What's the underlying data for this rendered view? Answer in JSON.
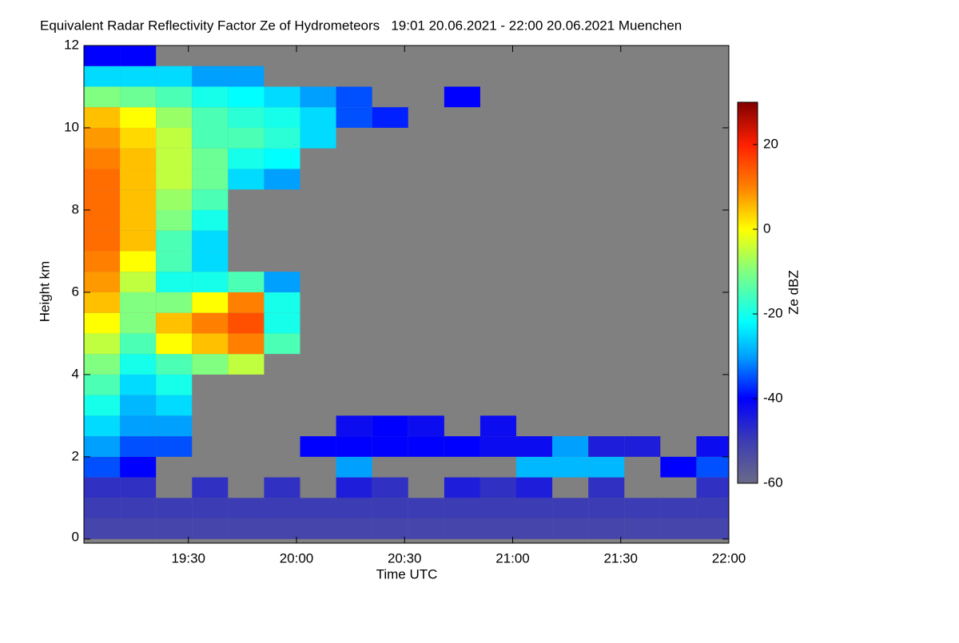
{
  "chart_data": {
    "type": "heatmap",
    "title": "Equivalent Radar Reflectivity Factor Ze of Hydrometeors   19:01 20.06.2021 - 22:00 20.06.2021 Muenchen",
    "x_label": "Time UTC",
    "y_label": "Height km",
    "colorbar_label": "Ze dBZ",
    "background": "#808080",
    "xlim": [
      1141,
      1320
    ],
    "xticks": [
      {
        "value": 1170,
        "label": "19:30"
      },
      {
        "value": 1200,
        "label": "20:00"
      },
      {
        "value": 1230,
        "label": "20:30"
      },
      {
        "value": 1260,
        "label": "21:00"
      },
      {
        "value": 1290,
        "label": "21:30"
      },
      {
        "value": 1320,
        "label": "22:00"
      }
    ],
    "ylim": [
      -0.1,
      12
    ],
    "yticks": [
      0,
      2,
      4,
      6,
      8,
      10,
      12
    ],
    "zlim": [
      -60,
      30
    ],
    "zticks": [
      -60,
      -40,
      -20,
      0,
      20
    ],
    "colormap": [
      {
        "value": -60,
        "color": "#6a6a86"
      },
      {
        "value": -50,
        "color": "#3c3cb4"
      },
      {
        "value": -40,
        "color": "#0000ff"
      },
      {
        "value": -30,
        "color": "#00a0ff"
      },
      {
        "value": -22,
        "color": "#00ffff"
      },
      {
        "value": -10,
        "color": "#80ff80"
      },
      {
        "value": 0,
        "color": "#ffff00"
      },
      {
        "value": 10,
        "color": "#ff8000"
      },
      {
        "value": 20,
        "color": "#ff2000"
      },
      {
        "value": 30,
        "color": "#800000"
      }
    ],
    "x": [
      1146,
      1156,
      1166,
      1176,
      1186,
      1196,
      1206,
      1216,
      1226,
      1236,
      1246,
      1256,
      1266,
      1276,
      1286,
      1296,
      1306,
      1316
    ],
    "y": [
      0.25,
      0.75,
      1.25,
      1.75,
      2.25,
      2.75,
      3.25,
      3.75,
      4.25,
      4.75,
      5.25,
      5.75,
      6.25,
      6.75,
      7.25,
      7.75,
      8.25,
      8.75,
      9.25,
      9.75,
      10.25,
      10.75,
      11.25,
      11.75
    ],
    "z": [
      [
        -52,
        -52,
        -52,
        -52,
        -52,
        -52,
        -52,
        -52,
        -52,
        -52,
        -52,
        -52,
        -52,
        -52,
        -52,
        -52,
        -52,
        -52
      ],
      [
        -50,
        -50,
        -50,
        -50,
        -50,
        -50,
        -50,
        -50,
        -50,
        -50,
        -50,
        -50,
        -50,
        -50,
        -50,
        -50,
        -50,
        -50
      ],
      [
        -48,
        -48,
        null,
        -48,
        null,
        -48,
        null,
        -45,
        -48,
        null,
        -45,
        -48,
        -45,
        null,
        -48,
        null,
        null,
        -48
      ],
      [
        -35,
        -40,
        null,
        null,
        null,
        null,
        null,
        -30,
        null,
        null,
        null,
        null,
        -28,
        -28,
        -28,
        null,
        -40,
        -35
      ],
      [
        -30,
        -35,
        -35,
        null,
        null,
        null,
        -40,
        -40,
        -40,
        -40,
        -40,
        -42,
        -42,
        -30,
        -45,
        -45,
        null,
        -42
      ],
      [
        -25,
        -30,
        -30,
        null,
        null,
        null,
        null,
        -42,
        -40,
        -42,
        null,
        -42,
        null,
        null,
        null,
        null,
        null,
        null
      ],
      [
        -20,
        -28,
        -25,
        null,
        null,
        null,
        null,
        null,
        null,
        null,
        null,
        null,
        null,
        null,
        null,
        null,
        null,
        null
      ],
      [
        -15,
        -25,
        -20,
        null,
        null,
        null,
        null,
        null,
        null,
        null,
        null,
        null,
        null,
        null,
        null,
        null,
        null,
        null
      ],
      [
        -10,
        -20,
        -15,
        -10,
        -5,
        null,
        null,
        null,
        null,
        null,
        null,
        null,
        null,
        null,
        null,
        null,
        null,
        null
      ],
      [
        -5,
        -15,
        0,
        5,
        10,
        -15,
        null,
        null,
        null,
        null,
        null,
        null,
        null,
        null,
        null,
        null,
        null,
        null
      ],
      [
        0,
        -10,
        5,
        10,
        15,
        -20,
        null,
        null,
        null,
        null,
        null,
        null,
        null,
        null,
        null,
        null,
        null,
        null
      ],
      [
        5,
        -10,
        -10,
        0,
        10,
        -20,
        null,
        null,
        null,
        null,
        null,
        null,
        null,
        null,
        null,
        null,
        null,
        null
      ],
      [
        8,
        -5,
        -20,
        -20,
        -15,
        -30,
        null,
        null,
        null,
        null,
        null,
        null,
        null,
        null,
        null,
        null,
        null,
        null
      ],
      [
        10,
        0,
        -15,
        -25,
        null,
        null,
        null,
        null,
        null,
        null,
        null,
        null,
        null,
        null,
        null,
        null,
        null,
        null
      ],
      [
        12,
        5,
        -15,
        -25,
        null,
        null,
        null,
        null,
        null,
        null,
        null,
        null,
        null,
        null,
        null,
        null,
        null,
        null
      ],
      [
        12,
        5,
        -10,
        -20,
        null,
        null,
        null,
        null,
        null,
        null,
        null,
        null,
        null,
        null,
        null,
        null,
        null,
        null
      ],
      [
        12,
        5,
        -8,
        -15,
        null,
        null,
        null,
        null,
        null,
        null,
        null,
        null,
        null,
        null,
        null,
        null,
        null,
        null
      ],
      [
        12,
        5,
        -5,
        -12,
        -25,
        -30,
        null,
        null,
        null,
        null,
        null,
        null,
        null,
        null,
        null,
        null,
        null,
        null
      ],
      [
        10,
        5,
        -5,
        -12,
        -20,
        -22,
        null,
        null,
        null,
        null,
        null,
        null,
        null,
        null,
        null,
        null,
        null,
        null
      ],
      [
        8,
        3,
        -5,
        -15,
        -15,
        -18,
        -25,
        null,
        null,
        null,
        null,
        null,
        null,
        null,
        null,
        null,
        null,
        null
      ],
      [
        5,
        0,
        -8,
        -15,
        -18,
        -20,
        -25,
        -35,
        -38,
        null,
        null,
        null,
        null,
        null,
        null,
        null,
        null,
        null
      ],
      [
        -10,
        -12,
        -15,
        -20,
        -22,
        -25,
        -30,
        -35,
        null,
        null,
        -40,
        null,
        null,
        null,
        null,
        null,
        null,
        null
      ],
      [
        -25,
        -25,
        -25,
        -30,
        -30,
        null,
        null,
        null,
        null,
        null,
        null,
        null,
        null,
        null,
        null,
        null,
        null,
        null
      ],
      [
        -40,
        -40,
        null,
        null,
        null,
        null,
        null,
        null,
        null,
        null,
        null,
        null,
        null,
        null,
        null,
        null,
        null,
        null
      ]
    ]
  }
}
